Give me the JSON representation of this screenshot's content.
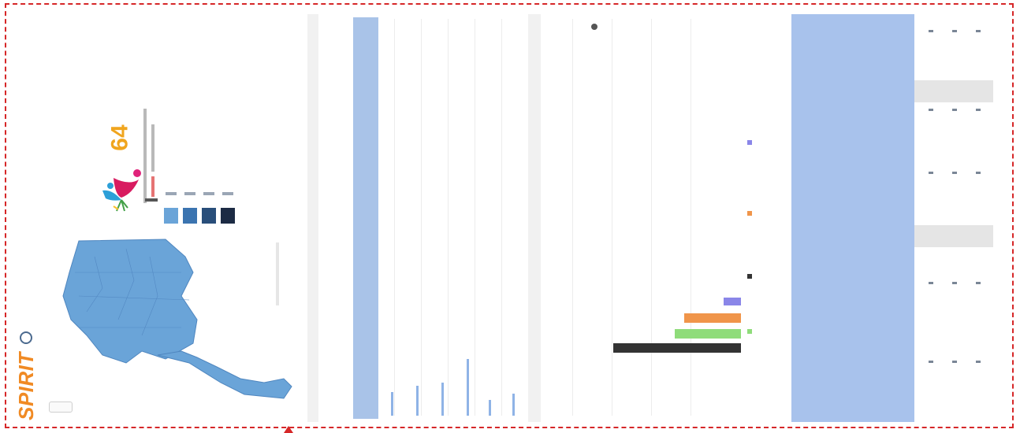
{
  "brand": {
    "logo": "SPIRIT",
    "title": ""
  },
  "kpi": {
    "value": "64"
  },
  "colors": {
    "frame": "#d62728",
    "accent_orange": "#f08a24",
    "kpi_gold": "#f0a51e",
    "header_blue": "#a9c3e8",
    "legend": [
      "#6aa4d8",
      "#3b74b0",
      "#294e7a",
      "#1c2b44"
    ]
  },
  "icons": {
    "logo": "globe-icon",
    "kpi": "people-logo-icon"
  }
}
